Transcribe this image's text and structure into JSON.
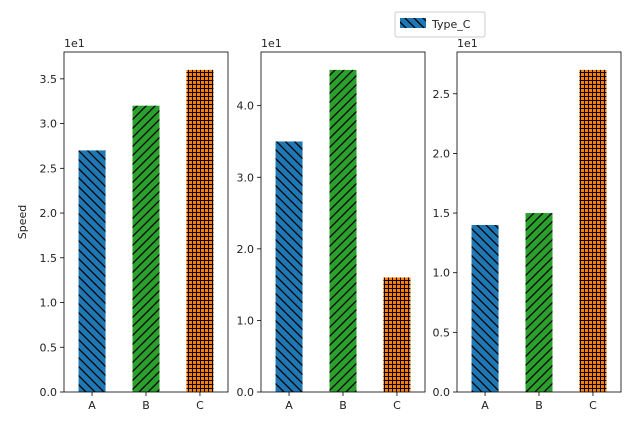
{
  "legend": {
    "label": "Type_C"
  },
  "colors": {
    "A": "#1f77b4",
    "B": "#2ca02c",
    "C": "#ff7f0e",
    "hatch": "#000000"
  },
  "chart_data": [
    {
      "type": "bar",
      "categories": [
        "A",
        "B",
        "C"
      ],
      "values": [
        27,
        32,
        36
      ],
      "ylabel": "Speed",
      "offset_text": "1e1",
      "ylim": [
        0,
        38
      ],
      "yticks": [
        0,
        5,
        10,
        15,
        20,
        25,
        30,
        35
      ],
      "ytick_labels": [
        "0.0",
        "0.5",
        "1.0",
        "1.5",
        "2.0",
        "2.5",
        "3.0",
        "3.5"
      ],
      "hatches": [
        "backslash",
        "slash",
        "grid"
      ]
    },
    {
      "type": "bar",
      "categories": [
        "A",
        "B",
        "C"
      ],
      "values": [
        35,
        45,
        16
      ],
      "ylabel": "",
      "offset_text": "1e1",
      "ylim": [
        0,
        47.5
      ],
      "yticks": [
        0,
        10,
        20,
        30,
        40
      ],
      "ytick_labels": [
        "0.0",
        "1.0",
        "2.0",
        "3.0",
        "4.0"
      ],
      "hatches": [
        "backslash",
        "slash",
        "grid"
      ]
    },
    {
      "type": "bar",
      "categories": [
        "A",
        "B",
        "C"
      ],
      "values": [
        14,
        15,
        27
      ],
      "ylabel": "",
      "offset_text": "1e1",
      "ylim": [
        0,
        28.5
      ],
      "yticks": [
        0,
        5,
        10,
        15,
        20,
        25
      ],
      "ytick_labels": [
        "0.0",
        "0.5",
        "1.0",
        "1.5",
        "2.0",
        "2.5"
      ],
      "hatches": [
        "backslash",
        "slash",
        "grid"
      ]
    }
  ]
}
